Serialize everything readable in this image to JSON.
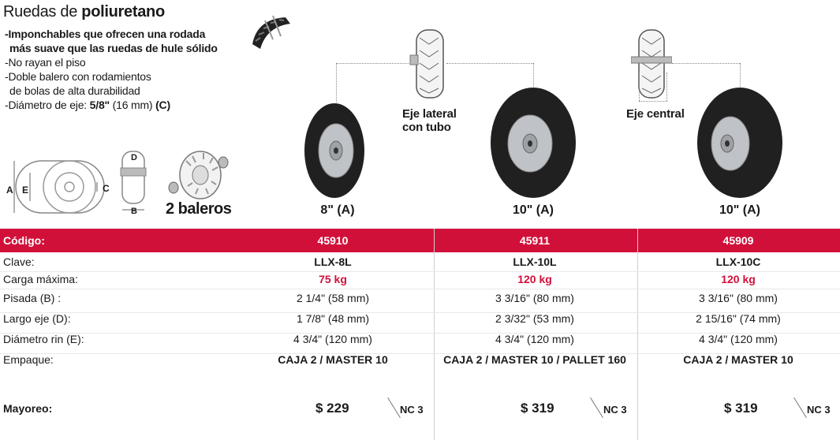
{
  "header": {
    "title_prefix": "Ruedas de ",
    "title_bold": "poliuretano",
    "bullets": [
      "-Imponchables que ofrecen una rodada",
      " más suave que las ruedas de hule sólido",
      "-No rayan el piso",
      "-Doble balero con rodamientos",
      " de bolas de alta durabilidad"
    ],
    "axle_prefix": "-Diámetro de eje: ",
    "axle_frac": "5/8\"",
    "axle_mm": " (16 mm) ",
    "axle_code": "(C)"
  },
  "diagram": {
    "labels": {
      "a": "A",
      "e": "E",
      "c": "C",
      "d": "D",
      "b": "B"
    },
    "baleros": "2 baleros"
  },
  "captions": {
    "lateral_1": "Eje lateral",
    "lateral_2": "con tubo",
    "central": "Eje central"
  },
  "sizes": [
    "8\" (A)",
    "10\" (A)",
    "10\" (A)"
  ],
  "table": {
    "code_label": "Código:",
    "codes": [
      "45910",
      "45911",
      "45909"
    ],
    "rows": [
      {
        "label": "Clave:",
        "values": [
          "LLX-8L",
          "LLX-10L",
          "LLX-10C"
        ]
      },
      {
        "label": "Carga máxima:",
        "values": [
          "75 kg",
          "120 kg",
          "120 kg"
        ]
      },
      {
        "label": "Pisada (B) :",
        "values": [
          "2 1/4\" (58 mm)",
          "3 3/16\" (80 mm)",
          "3 3/16\" (80 mm)"
        ]
      },
      {
        "label": "Largo eje (D):",
        "values": [
          "1 7/8\" (48 mm)",
          "2 3/32\" (53 mm)",
          "2 15/16\" (74 mm)"
        ]
      },
      {
        "label": "Diámetro rin (E):",
        "values": [
          "4 3/4\" (120 mm)",
          "4 3/4\" (120 mm)",
          "4 3/4\" (120 mm)"
        ]
      },
      {
        "label": "Empaque:",
        "values": [
          "CAJA 2 / MASTER 10",
          "CAJA 2 / MASTER 10 / PALLET 160",
          "CAJA 2 / MASTER 10"
        ]
      }
    ],
    "price_label": "Mayoreo:",
    "prices": [
      "$ 229",
      "$ 319",
      "$ 319"
    ],
    "nc": [
      "NC 3",
      "NC 3",
      "NC 3"
    ]
  },
  "colors": {
    "accent": "#d1103a",
    "tire": "#1e1e1e",
    "rim": "#b9bcc0"
  }
}
